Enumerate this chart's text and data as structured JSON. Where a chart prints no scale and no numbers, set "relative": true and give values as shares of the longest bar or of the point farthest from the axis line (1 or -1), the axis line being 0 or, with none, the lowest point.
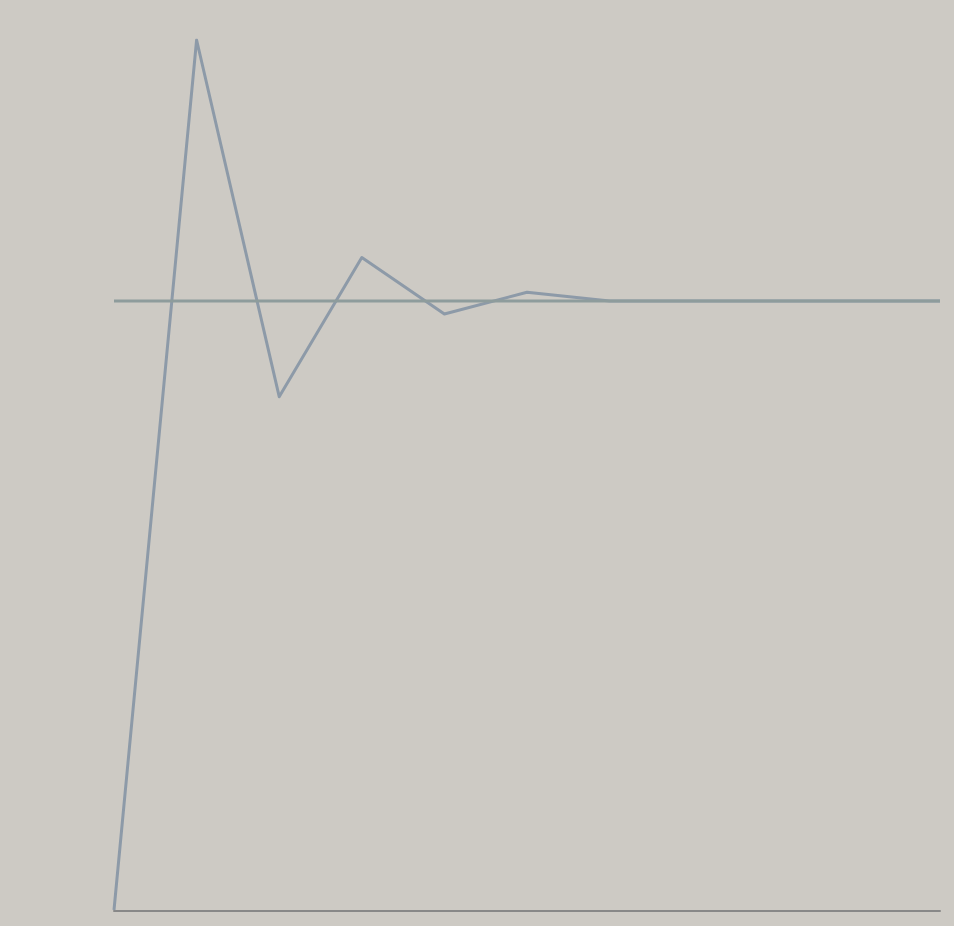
{
  "chart_data": {
    "type": "line",
    "relative": true,
    "grid": false,
    "marker": "none",
    "line_style": "solid",
    "categories": [
      null,
      null,
      null,
      null,
      null,
      null,
      null,
      null,
      null,
      null,
      null
    ],
    "series": [
      {
        "color": "#8d9aa8",
        "values": [
          0,
          1,
          0.59,
          0.75,
          0.685,
          0.71,
          0.7,
          0.7,
          0.7,
          0.7,
          0.7
        ]
      },
      {
        "color": "#8e9c9c",
        "values": [
          0.7,
          0.7,
          0.7,
          0.7,
          0.7,
          0.7,
          0.7,
          0.7,
          0.7,
          0.7,
          0.7
        ]
      }
    ]
  }
}
